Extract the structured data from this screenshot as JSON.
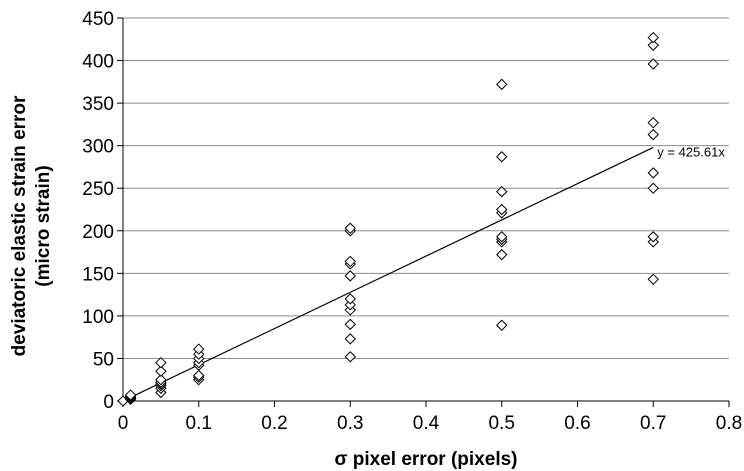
{
  "chart_data": {
    "type": "scatter",
    "xlabel": "σ pixel error (pixels)",
    "ylabel": [
      "deviatoric elastic strain error",
      "(micro strain)"
    ],
    "xlim": [
      0,
      0.8
    ],
    "ylim": [
      0,
      450
    ],
    "x_ticks": [
      "0",
      "0.1",
      "0.2",
      "0.3",
      "0.4",
      "0.5",
      "0.6",
      "0.7",
      "0.8"
    ],
    "y_ticks": [
      "0",
      "50",
      "100",
      "150",
      "200",
      "250",
      "300",
      "350",
      "400",
      "450"
    ],
    "grid": "horizontal",
    "marker": "diamond",
    "points": [
      [
        0,
        0
      ],
      [
        0.01,
        2
      ],
      [
        0.01,
        3
      ],
      [
        0.01,
        4
      ],
      [
        0.01,
        5
      ],
      [
        0.01,
        6
      ],
      [
        0.01,
        7
      ],
      [
        0.05,
        10
      ],
      [
        0.05,
        15
      ],
      [
        0.05,
        18
      ],
      [
        0.05,
        20
      ],
      [
        0.05,
        22
      ],
      [
        0.05,
        25
      ],
      [
        0.05,
        35
      ],
      [
        0.05,
        45
      ],
      [
        0.1,
        25
      ],
      [
        0.1,
        28
      ],
      [
        0.1,
        30
      ],
      [
        0.1,
        42
      ],
      [
        0.1,
        45
      ],
      [
        0.1,
        50
      ],
      [
        0.1,
        55
      ],
      [
        0.1,
        61
      ],
      [
        0.3,
        52
      ],
      [
        0.3,
        73
      ],
      [
        0.3,
        90
      ],
      [
        0.3,
        107
      ],
      [
        0.3,
        113
      ],
      [
        0.3,
        120
      ],
      [
        0.3,
        147
      ],
      [
        0.3,
        161
      ],
      [
        0.3,
        164
      ],
      [
        0.3,
        200
      ],
      [
        0.3,
        203
      ],
      [
        0.5,
        89
      ],
      [
        0.5,
        172
      ],
      [
        0.5,
        187
      ],
      [
        0.5,
        190
      ],
      [
        0.5,
        193
      ],
      [
        0.5,
        221
      ],
      [
        0.5,
        225
      ],
      [
        0.5,
        246
      ],
      [
        0.5,
        287
      ],
      [
        0.5,
        372
      ],
      [
        0.7,
        143
      ],
      [
        0.7,
        187
      ],
      [
        0.7,
        193
      ],
      [
        0.7,
        250
      ],
      [
        0.7,
        268
      ],
      [
        0.7,
        313
      ],
      [
        0.7,
        327
      ],
      [
        0.7,
        396
      ],
      [
        0.7,
        418
      ],
      [
        0.7,
        427
      ]
    ],
    "trendline": {
      "slope": 425.61,
      "x_range": [
        0,
        0.7
      ],
      "label": "y = 425.61x"
    }
  }
}
